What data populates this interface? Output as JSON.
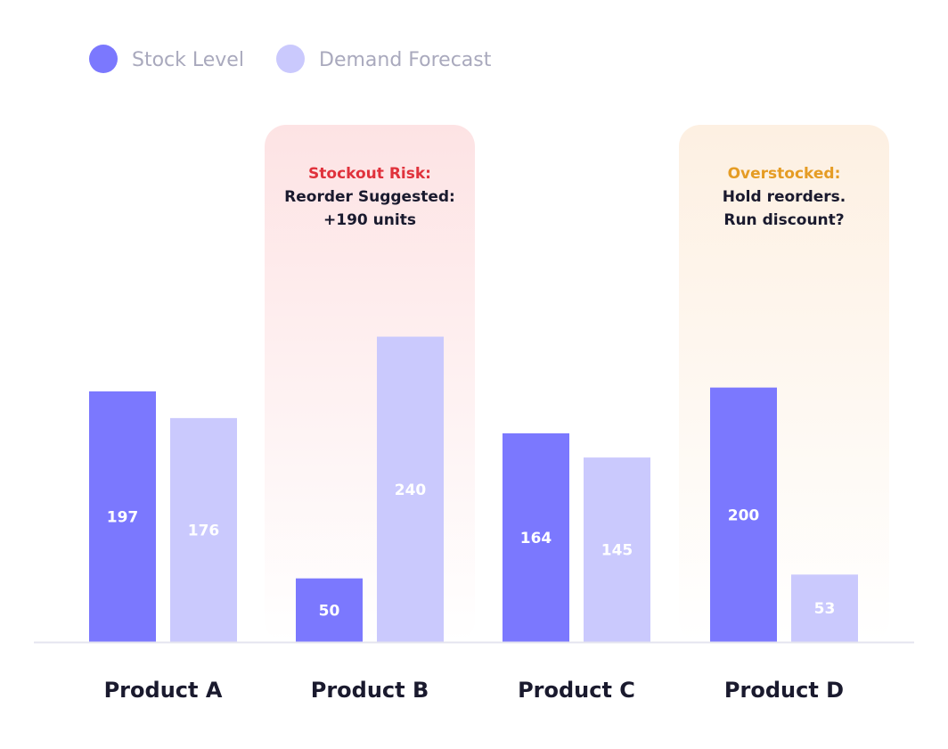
{
  "colors": {
    "stock": "#7b78fe",
    "forecast": "#cac9fd",
    "risk_title": "#e0323c",
    "risk_bg": "#fde3e4",
    "over_title": "#e59c24",
    "over_bg": "#fdf0e2",
    "axis": "#e4e4ef"
  },
  "chart_data": {
    "type": "bar",
    "title": "",
    "xlabel": "",
    "ylabel": "",
    "ylim": [
      0,
      410
    ],
    "grid": false,
    "legend_position": "top-left",
    "categories": [
      "Product A",
      "Product B",
      "Product C",
      "Product D"
    ],
    "series": [
      {
        "name": "Stock Level",
        "values": [
          197,
          50,
          164,
          200
        ]
      },
      {
        "name": "Demand Forecast",
        "values": [
          176,
          240,
          145,
          53
        ]
      }
    ],
    "annotations": [
      {
        "category": "Product B",
        "tone": "risk",
        "title": "Stockout Risk:",
        "lines": [
          "Reorder Suggested:",
          "+190 units"
        ]
      },
      {
        "category": "Product D",
        "tone": "over",
        "title": "Overstocked:",
        "lines": [
          "Hold reorders.",
          "Run discount?"
        ]
      }
    ]
  }
}
